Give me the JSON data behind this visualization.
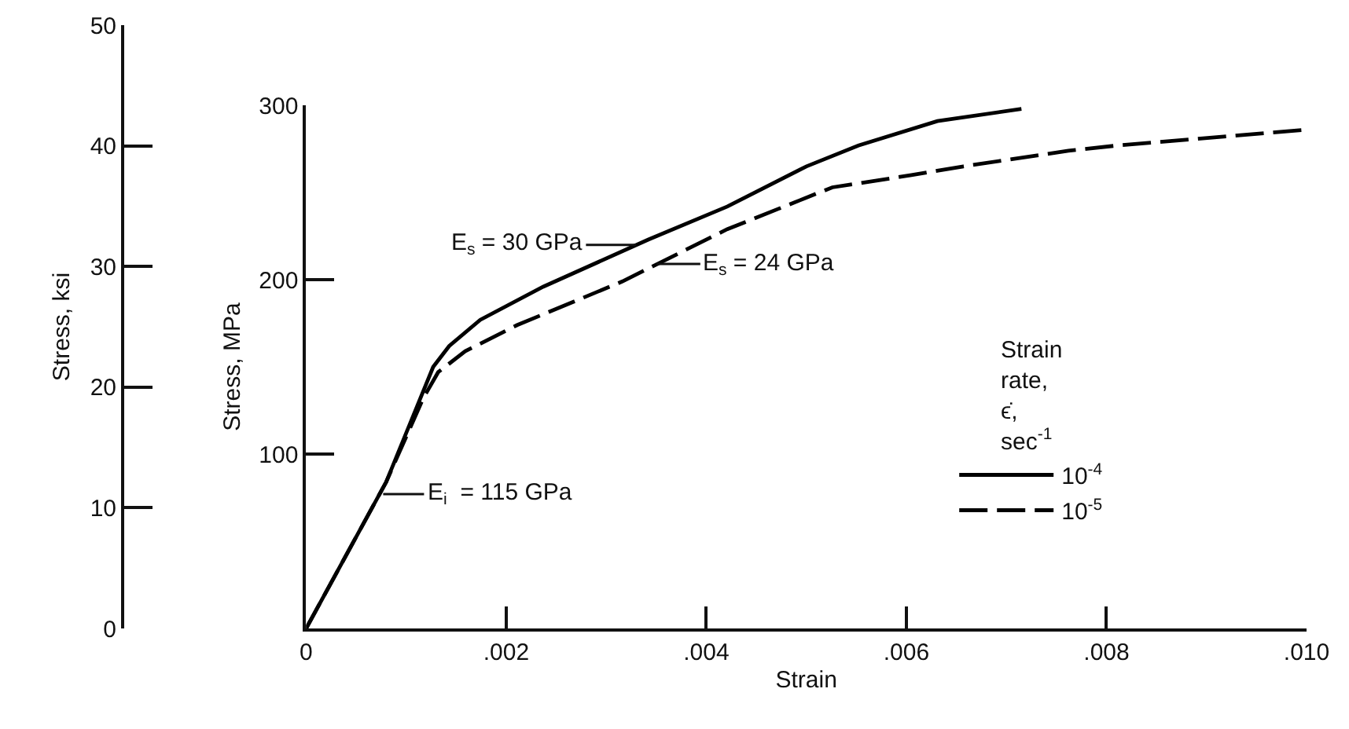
{
  "chart_data": {
    "type": "line",
    "xlabel": "Strain",
    "ylabel": "Stress, MPa",
    "y2label": "Stress, ksi",
    "legend_title": "Strain rate, ϵ̇, sec$^{-1}$",
    "legend": "bottom right",
    "xlim": [
      0,
      0.01
    ],
    "xticks": [
      0,
      {
        "value": 0.002,
        "label": ".002"
      },
      {
        "value": 0.004,
        "label": ".004"
      },
      {
        "value": 0.006,
        "label": ".006"
      },
      {
        "value": 0.008,
        "label": ".008"
      },
      {
        "value": 0.01,
        "label": ".010"
      }
    ],
    "ylim": [
      0,
      300
    ],
    "yticks": [
      100,
      200,
      300
    ],
    "y2lim": [
      0,
      50
    ],
    "y2ticks": [
      0,
      10,
      20,
      30,
      40,
      50
    ],
    "series": [
      {
        "name": "10$^{-4}$",
        "color": "#000000",
        "line_style": "solid",
        "x": [
          0,
          0.0008,
          0.00127,
          0.00143,
          0.00174,
          0.00237,
          0.00342,
          0.00421,
          0.005,
          0.00552,
          0.00631,
          0.00715
        ],
        "values": [
          0,
          84,
          150,
          162,
          177,
          196,
          223,
          242,
          265,
          277,
          291,
          298
        ]
      },
      {
        "name": "10$^{-5}$",
        "color": "#000000",
        "line_style": "dashed",
        "x": [
          0,
          0.0008,
          0.00117,
          0.00132,
          0.00159,
          0.00211,
          0.00316,
          0.00421,
          0.00526,
          0.00605,
          0.00657,
          0.00762,
          0.00811,
          0.00998
        ],
        "values": [
          0,
          84,
          132,
          147,
          159,
          174,
          199,
          229,
          253,
          260,
          265,
          274,
          277,
          286
        ]
      }
    ],
    "annotations": [
      {
        "text": "E$_{s}$ = 30 GPa",
        "x": 0.0033,
        "y": 220
      },
      {
        "text": "E$_{s}$ = 24 GPa",
        "x": 0.0035,
        "y": 209
      },
      {
        "text": "E$_{i}$  = 115 GPa",
        "x": 0.00077,
        "y": 77
      }
    ]
  }
}
